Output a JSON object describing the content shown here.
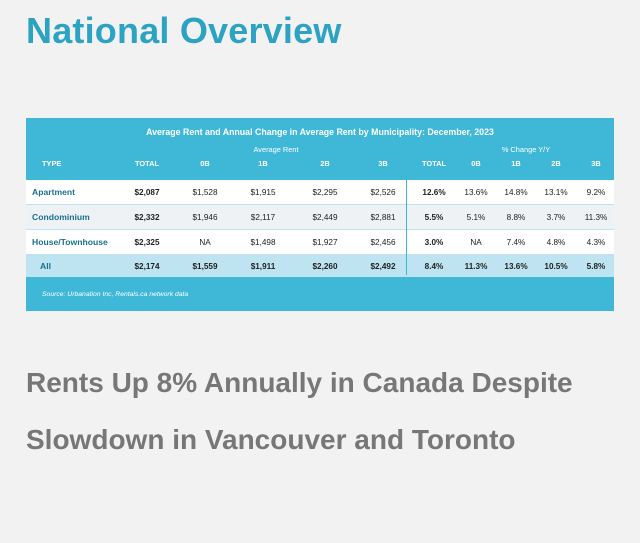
{
  "page": {
    "title": "National Overview",
    "headline": "Rents Up 8% Annually in Canada Despite Slowdown in Vancouver and Toronto"
  },
  "table": {
    "caption": "Average Rent and Annual Change in Average Rent by Municipality: December, 2023",
    "group_headers": {
      "avg_rent": "Average Rent",
      "pct_change": "% Change Y/Y"
    },
    "columns": [
      "TYPE",
      "TOTAL",
      "0B",
      "1B",
      "2B",
      "3B",
      "TOTAL",
      "0B",
      "1B",
      "2B",
      "3B"
    ],
    "rows": [
      [
        "Apartment",
        "$2,087",
        "$1,528",
        "$1,915",
        "$2,295",
        "$2,526",
        "12.6%",
        "13.6%",
        "14.8%",
        "13.1%",
        "9.2%"
      ],
      [
        "Condominium",
        "$2,332",
        "$1,946",
        "$2,117",
        "$2,449",
        "$2,881",
        "5.5%",
        "5.1%",
        "8.8%",
        "3.7%",
        "11.3%"
      ],
      [
        "House/Townhouse",
        "$2,325",
        "NA",
        "$1,498",
        "$1,927",
        "$2,456",
        "3.0%",
        "NA",
        "7.4%",
        "4.8%",
        "4.3%"
      ],
      [
        "All",
        "$2,174",
        "$1,559",
        "$1,911",
        "$2,260",
        "$2,492",
        "8.4%",
        "11.3%",
        "13.6%",
        "10.5%",
        "5.8%"
      ]
    ],
    "source": "Source: Urbanation Inc, Rentals.ca network data"
  },
  "colors": {
    "title": "#2da3c4",
    "table_band": "#3fb8d8",
    "total_row": "#bde4f0",
    "headline": "#777777"
  }
}
